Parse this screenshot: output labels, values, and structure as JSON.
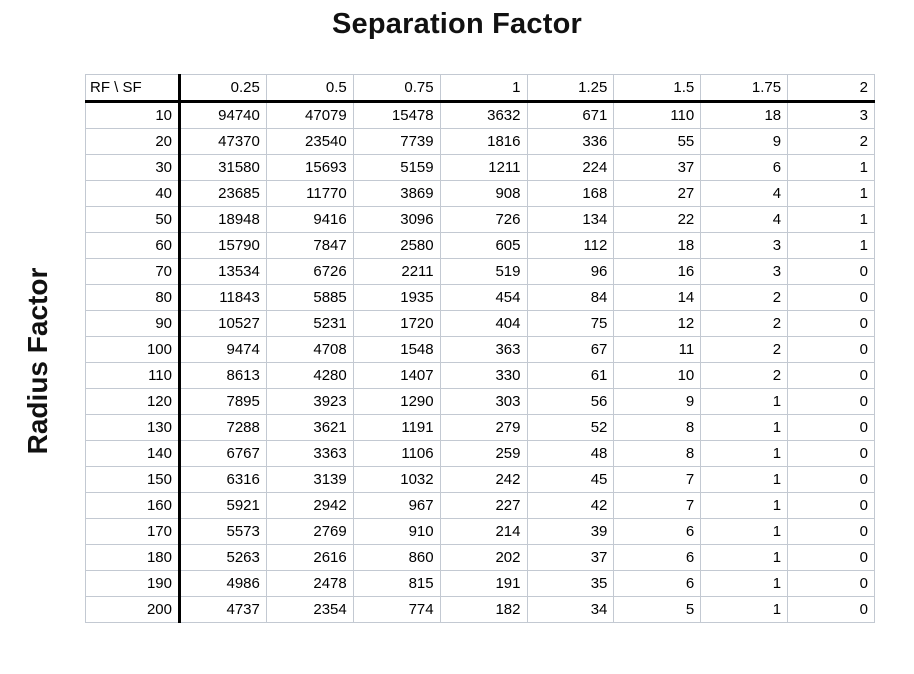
{
  "chart_data": {
    "type": "table",
    "title": "Separation Factor",
    "xlabel": "Separation Factor",
    "ylabel": "Radius Factor",
    "corner_label": "RF  \\  SF",
    "columns": [
      "0.25",
      "0.5",
      "0.75",
      "1",
      "1.25",
      "1.5",
      "1.75",
      "2"
    ],
    "row_labels": [
      "10",
      "20",
      "30",
      "40",
      "50",
      "60",
      "70",
      "80",
      "90",
      "100",
      "110",
      "120",
      "130",
      "140",
      "150",
      "160",
      "170",
      "180",
      "190",
      "200"
    ],
    "rows": [
      [
        94740,
        47079,
        15478,
        3632,
        671,
        110,
        18,
        3
      ],
      [
        47370,
        23540,
        7739,
        1816,
        336,
        55,
        9,
        2
      ],
      [
        31580,
        15693,
        5159,
        1211,
        224,
        37,
        6,
        1
      ],
      [
        23685,
        11770,
        3869,
        908,
        168,
        27,
        4,
        1
      ],
      [
        18948,
        9416,
        3096,
        726,
        134,
        22,
        4,
        1
      ],
      [
        15790,
        7847,
        2580,
        605,
        112,
        18,
        3,
        1
      ],
      [
        13534,
        6726,
        2211,
        519,
        96,
        16,
        3,
        0
      ],
      [
        11843,
        5885,
        1935,
        454,
        84,
        14,
        2,
        0
      ],
      [
        10527,
        5231,
        1720,
        404,
        75,
        12,
        2,
        0
      ],
      [
        9474,
        4708,
        1548,
        363,
        67,
        11,
        2,
        0
      ],
      [
        8613,
        4280,
        1407,
        330,
        61,
        10,
        2,
        0
      ],
      [
        7895,
        3923,
        1290,
        303,
        56,
        9,
        1,
        0
      ],
      [
        7288,
        3621,
        1191,
        279,
        52,
        8,
        1,
        0
      ],
      [
        6767,
        3363,
        1106,
        259,
        48,
        8,
        1,
        0
      ],
      [
        6316,
        3139,
        1032,
        242,
        45,
        7,
        1,
        0
      ],
      [
        5921,
        2942,
        967,
        227,
        42,
        7,
        1,
        0
      ],
      [
        5573,
        2769,
        910,
        214,
        39,
        6,
        1,
        0
      ],
      [
        5263,
        2616,
        860,
        202,
        37,
        6,
        1,
        0
      ],
      [
        4986,
        2478,
        815,
        191,
        35,
        6,
        1,
        0
      ],
      [
        4737,
        2354,
        774,
        182,
        34,
        5,
        1,
        0
      ]
    ],
    "layout": {
      "grid": true,
      "gridline_color": "#c3c9d2",
      "divider_color": "#000000",
      "background": "#ffffff"
    }
  }
}
